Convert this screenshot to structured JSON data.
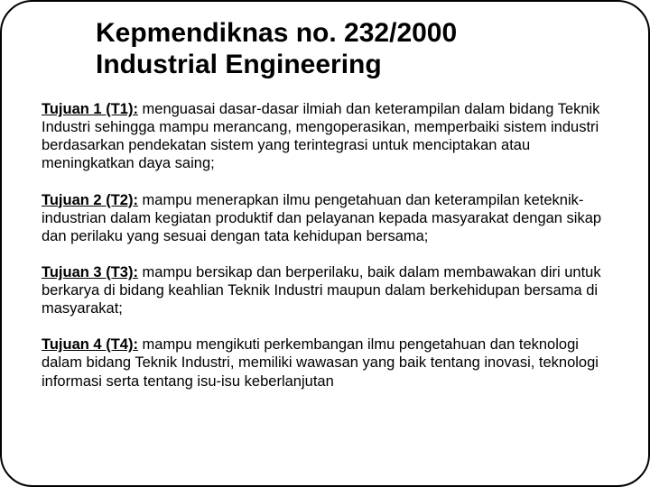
{
  "title_line1": "Kepmendiknas no. 232/2000",
  "title_line2": "Industrial Engineering",
  "objectives": [
    {
      "label": "Tujuan 1 (T1):",
      "text": " menguasai dasar-dasar ilmiah dan keterampilan dalam bidang Teknik Industri sehingga mampu merancang, mengoperasikan, memperbaiki sistem industri berdasarkan pendekatan sistem yang terintegrasi untuk menciptakan atau meningkatkan daya saing;"
    },
    {
      "label": "Tujuan 2 (T2):",
      "text": " mampu menerapkan ilmu pengetahuan dan keterampilan keteknik-industrian dalam kegiatan produktif dan pelayanan kepada masyarakat dengan sikap dan perilaku yang sesuai dengan tata kehidupan bersama;"
    },
    {
      "label": "Tujuan 3 (T3):",
      "text": " mampu bersikap dan berperilaku, baik dalam membawakan diri untuk berkarya di bidang keahlian Teknik Industri maupun dalam berkehidupan bersama di masyarakat;"
    },
    {
      "label": "Tujuan 4 (T4):",
      "text": " mampu mengikuti perkembangan ilmu pengetahuan dan teknologi dalam bidang Teknik Industri, memiliki wawasan yang baik tentang inovasi, teknologi informasi serta tentang isu-isu keberlanjutan"
    }
  ],
  "style": {
    "slide_width": 720,
    "slide_height": 540,
    "background_color": "#ffffff",
    "border_color": "#000000",
    "border_width": 2,
    "border_radius": 36,
    "title_fontsize": 30,
    "title_weight": 700,
    "title_color": "#000000",
    "body_fontsize": 16.5,
    "body_color": "#000000",
    "label_weight": 700,
    "label_underline": true,
    "paragraph_spacing": 20,
    "font_family": "Arial"
  }
}
